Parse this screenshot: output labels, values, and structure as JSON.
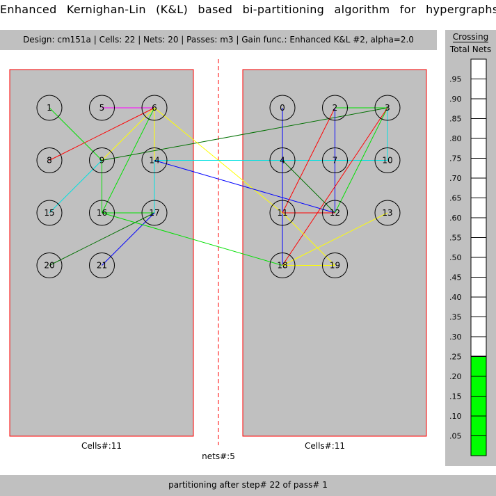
{
  "window": {
    "title": "Enhanced Kernighan-Lin (K&L) based bi-partitioning algorithm for hypergraphs"
  },
  "info_bar": {
    "text": "Design: cm151a  |  Cells: 22  |  Nets: 20  |  Passes: m3  |  Gain func.: Enhanced K&L #2, alpha=2.0"
  },
  "meter": {
    "title_line1": "Crossing",
    "title_line2": "Total Nets",
    "fill_fraction": 0.25,
    "fill_color": "#00ff00",
    "ticks": [
      ".05",
      ".10",
      ".15",
      ".20",
      ".25",
      ".30",
      ".35",
      ".40",
      ".45",
      ".50",
      ".55",
      ".60",
      ".65",
      ".70",
      ".75",
      ".80",
      ".85",
      ".90",
      ".95"
    ]
  },
  "partitions": {
    "left": {
      "label": "Cells#:11"
    },
    "right": {
      "label": "Cells#:11"
    },
    "cut_label": "nets#:5"
  },
  "cells": [
    {
      "id": "1",
      "side": "left",
      "row": 0,
      "col": 0
    },
    {
      "id": "5",
      "side": "left",
      "row": 0,
      "col": 1
    },
    {
      "id": "6",
      "side": "left",
      "row": 0,
      "col": 2
    },
    {
      "id": "8",
      "side": "left",
      "row": 1,
      "col": 0
    },
    {
      "id": "9",
      "side": "left",
      "row": 1,
      "col": 1
    },
    {
      "id": "14",
      "side": "left",
      "row": 1,
      "col": 2
    },
    {
      "id": "15",
      "side": "left",
      "row": 2,
      "col": 0
    },
    {
      "id": "16",
      "side": "left",
      "row": 2,
      "col": 1
    },
    {
      "id": "17",
      "side": "left",
      "row": 2,
      "col": 2
    },
    {
      "id": "20",
      "side": "left",
      "row": 3,
      "col": 0
    },
    {
      "id": "21",
      "side": "left",
      "row": 3,
      "col": 1
    },
    {
      "id": "0",
      "side": "right",
      "row": 0,
      "col": 0
    },
    {
      "id": "2",
      "side": "right",
      "row": 0,
      "col": 1
    },
    {
      "id": "3",
      "side": "right",
      "row": 0,
      "col": 2
    },
    {
      "id": "4",
      "side": "right",
      "row": 1,
      "col": 0
    },
    {
      "id": "7",
      "side": "right",
      "row": 1,
      "col": 1
    },
    {
      "id": "10",
      "side": "right",
      "row": 1,
      "col": 2
    },
    {
      "id": "11",
      "side": "right",
      "row": 2,
      "col": 0
    },
    {
      "id": "12",
      "side": "right",
      "row": 2,
      "col": 1
    },
    {
      "id": "13",
      "side": "right",
      "row": 2,
      "col": 2
    },
    {
      "id": "18",
      "side": "right",
      "row": 3,
      "col": 0
    },
    {
      "id": "19",
      "side": "right",
      "row": 3,
      "col": 1
    }
  ],
  "net_colors": {
    "green": "#00e000",
    "red": "#ff0000",
    "magenta": "#ff00ff",
    "yellow": "#ffff00",
    "darkgreen": "#007000",
    "cyan": "#00e0e0",
    "blue": "#0000ff"
  },
  "connections": [
    {
      "from": "1",
      "to": "9",
      "color": "green"
    },
    {
      "from": "5",
      "to": "6",
      "color": "magenta"
    },
    {
      "from": "8",
      "to": "6",
      "color": "red"
    },
    {
      "from": "9",
      "to": "6",
      "color": "yellow"
    },
    {
      "from": "9",
      "to": "16",
      "color": "green"
    },
    {
      "from": "16",
      "to": "6",
      "color": "green"
    },
    {
      "from": "6",
      "to": "17",
      "color": "green"
    },
    {
      "from": "6",
      "to": "14",
      "color": "yellow"
    },
    {
      "from": "14",
      "to": "17",
      "color": "cyan"
    },
    {
      "from": "9",
      "to": "15",
      "color": "cyan"
    },
    {
      "from": "16",
      "to": "17",
      "color": "green"
    },
    {
      "from": "17",
      "to": "20",
      "color": "darkgreen"
    },
    {
      "from": "17",
      "to": "21",
      "color": "blue"
    },
    {
      "from": "9",
      "to": "3",
      "color": "darkgreen"
    },
    {
      "from": "6",
      "to": "11",
      "color": "yellow"
    },
    {
      "from": "14",
      "to": "10",
      "color": "cyan"
    },
    {
      "from": "14",
      "to": "12",
      "color": "blue"
    },
    {
      "from": "16",
      "to": "18",
      "color": "green"
    },
    {
      "from": "0",
      "to": "18",
      "color": "blue"
    },
    {
      "from": "2",
      "to": "3",
      "color": "green"
    },
    {
      "from": "2",
      "to": "12",
      "color": "blue"
    },
    {
      "from": "2",
      "to": "11",
      "color": "red"
    },
    {
      "from": "3",
      "to": "10",
      "color": "cyan"
    },
    {
      "from": "3",
      "to": "12",
      "color": "green"
    },
    {
      "from": "3",
      "to": "18",
      "color": "red"
    },
    {
      "from": "4",
      "to": "12",
      "color": "darkgreen"
    },
    {
      "from": "11",
      "to": "12",
      "color": "red"
    },
    {
      "from": "11",
      "to": "19",
      "color": "yellow"
    },
    {
      "from": "18",
      "to": "13",
      "color": "yellow"
    },
    {
      "from": "18",
      "to": "19",
      "color": "yellow"
    }
  ],
  "status_bar": {
    "text": "partitioning after step# 22 of pass# 1"
  }
}
